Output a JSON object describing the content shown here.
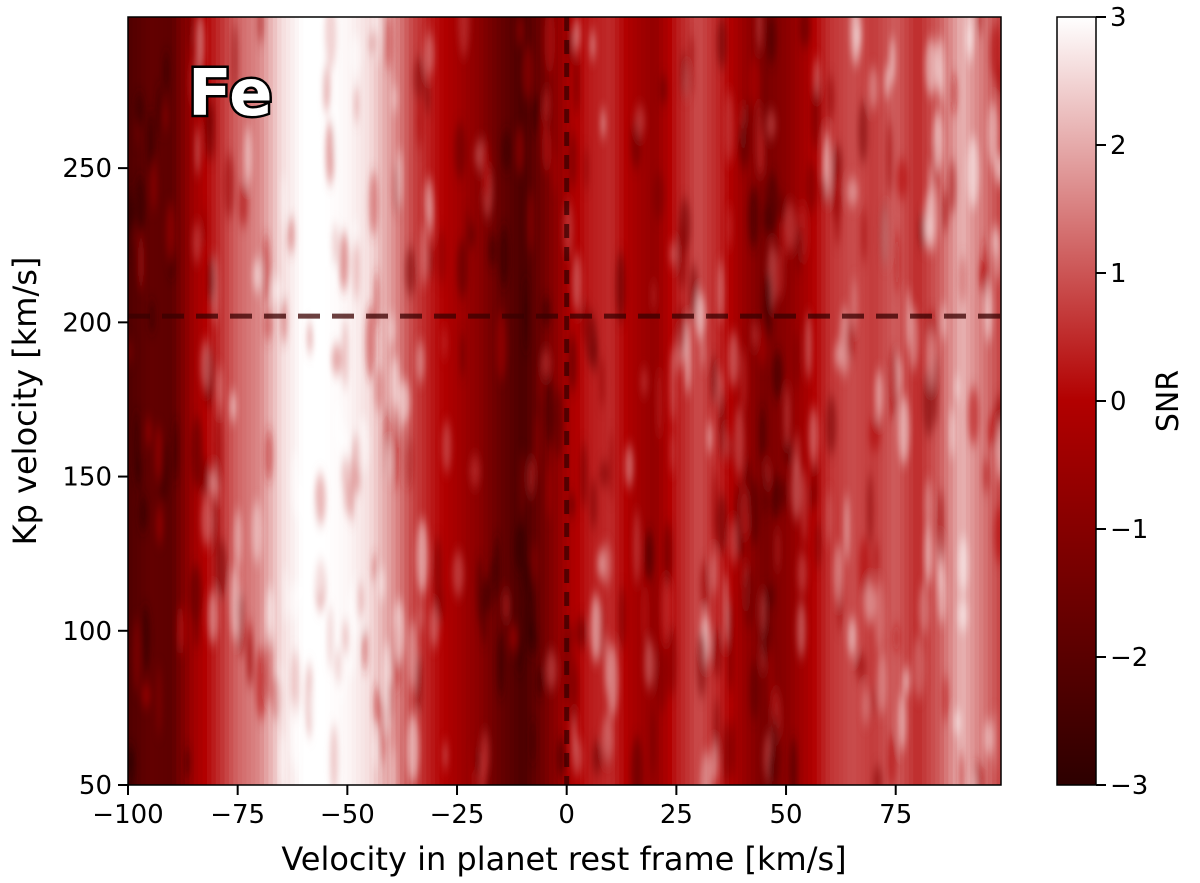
{
  "chart_data": {
    "type": "heatmap",
    "panel_label": "Fe",
    "xlabel": "Velocity in planet rest frame [km/s]",
    "ylabel": "Kp velocity [km/s]",
    "xlim": [
      -100,
      99
    ],
    "ylim": [
      50,
      299
    ],
    "x_ticks": [
      -100,
      -75,
      -50,
      -25,
      0,
      25,
      50,
      75
    ],
    "x_tick_labels": [
      "−100",
      "−75",
      "−50",
      "−25",
      "0",
      "25",
      "50",
      "75"
    ],
    "y_ticks": [
      50,
      100,
      150,
      200,
      250
    ],
    "y_tick_labels": [
      "50",
      "100",
      "150",
      "200",
      "250"
    ],
    "colorbar": {
      "label": "SNR",
      "range": [
        -3,
        3
      ],
      "ticks": [
        -3,
        -2,
        -1,
        0,
        1,
        2,
        3
      ],
      "tick_labels": [
        "−3",
        "−2",
        "−1",
        "0",
        "1",
        "2",
        "3"
      ],
      "colors": [
        "#2d0000",
        "#b20000",
        "#ffffff"
      ]
    },
    "reference_lines": {
      "vertical_x": 0,
      "horizontal_y": 202,
      "style": "dashed",
      "color": "#3a0000"
    },
    "x_profile": [
      {
        "x": -100,
        "snr": -2.2
      },
      {
        "x": -95,
        "snr": -1.8
      },
      {
        "x": -90,
        "snr": -1.9
      },
      {
        "x": -85,
        "snr": -0.4
      },
      {
        "x": -80,
        "snr": 0.4
      },
      {
        "x": -75,
        "snr": 1.2
      },
      {
        "x": -70,
        "snr": 1.6
      },
      {
        "x": -65,
        "snr": 2.6
      },
      {
        "x": -60,
        "snr": 3.0
      },
      {
        "x": -55,
        "snr": 3.0
      },
      {
        "x": -50,
        "snr": 2.9
      },
      {
        "x": -45,
        "snr": 2.6
      },
      {
        "x": -40,
        "snr": 1.8
      },
      {
        "x": -35,
        "snr": 0.8
      },
      {
        "x": -30,
        "snr": 0.2
      },
      {
        "x": -25,
        "snr": -0.3
      },
      {
        "x": -20,
        "snr": -0.9
      },
      {
        "x": -15,
        "snr": -1.7
      },
      {
        "x": -10,
        "snr": -2.3
      },
      {
        "x": -5,
        "snr": -1.4
      },
      {
        "x": 0,
        "snr": -0.3
      },
      {
        "x": 5,
        "snr": 0.3
      },
      {
        "x": 10,
        "snr": 0.5
      },
      {
        "x": 15,
        "snr": -0.2
      },
      {
        "x": 20,
        "snr": -0.7
      },
      {
        "x": 25,
        "snr": 0.3
      },
      {
        "x": 30,
        "snr": 0.9
      },
      {
        "x": 35,
        "snr": 0.4
      },
      {
        "x": 40,
        "snr": -0.5
      },
      {
        "x": 45,
        "snr": -1.3
      },
      {
        "x": 50,
        "snr": -0.9
      },
      {
        "x": 55,
        "snr": -0.2
      },
      {
        "x": 60,
        "snr": 0.6
      },
      {
        "x": 65,
        "snr": 0.9
      },
      {
        "x": 70,
        "snr": 0.7
      },
      {
        "x": 75,
        "snr": 1.1
      },
      {
        "x": 80,
        "snr": 0.5
      },
      {
        "x": 85,
        "snr": 1.1
      },
      {
        "x": 90,
        "snr": 2.1
      },
      {
        "x": 95,
        "snr": 1.4
      },
      {
        "x": 99,
        "snr": 0.8
      }
    ]
  }
}
